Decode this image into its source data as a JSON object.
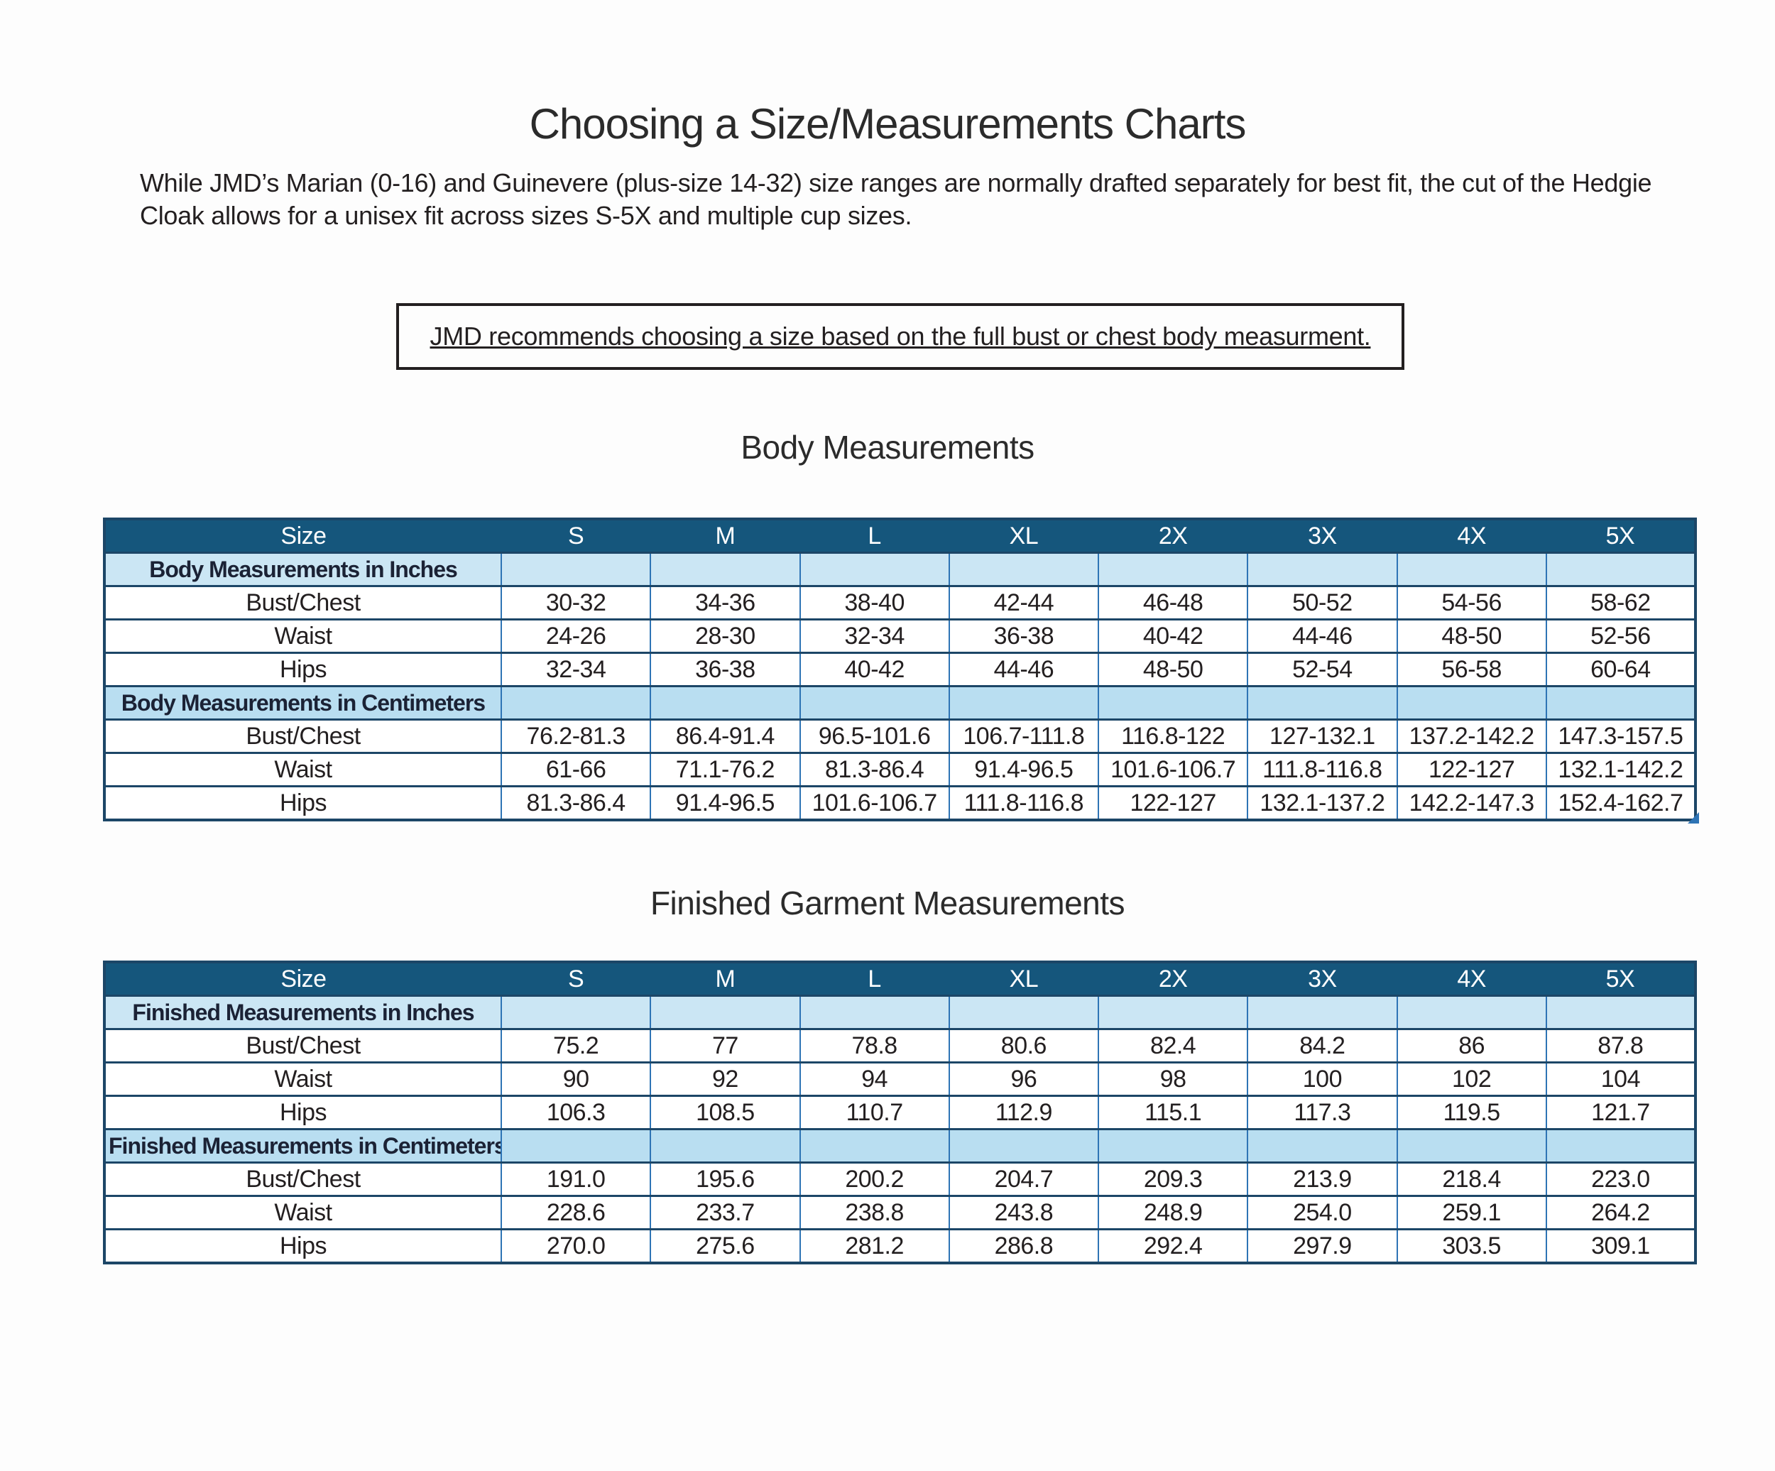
{
  "page": {
    "title": "Choosing a Size/Measurements Charts",
    "intro": "While JMD’s Marian (0-16) and Guinevere (plus-size 14-32) size ranges are normally drafted separately for best fit, the cut of the Hedgie Cloak allows for a unisex fit across sizes S-5X and multiple cup sizes.",
    "recommendation": "JMD recommends choosing a size based on the full bust or chest body measurment."
  },
  "colors": {
    "header_bg": "#15567C",
    "header_text": "#FFFFFF",
    "subheader_bg_inches": "#CBE6F4",
    "subheader_bg_cm": "#B9DEF1",
    "border_dark": "#1C4667",
    "border_blue": "#2E74B5",
    "text": "#231F20"
  },
  "tables": [
    {
      "heading": "Body Measurements",
      "columns": [
        "Size",
        "S",
        "M",
        "L",
        "XL",
        "2X",
        "3X",
        "4X",
        "5X"
      ],
      "sections": [
        {
          "label": "Body Measurements in Inches",
          "unit": "inches",
          "rows": [
            {
              "label": "Bust/Chest",
              "values": [
                "30-32",
                "34-36",
                "38-40",
                "42-44",
                "46-48",
                "50-52",
                "54-56",
                "58-62"
              ]
            },
            {
              "label": "Waist",
              "values": [
                "24-26",
                "28-30",
                "32-34",
                "36-38",
                "40-42",
                "44-46",
                "48-50",
                "52-56"
              ]
            },
            {
              "label": "Hips",
              "values": [
                "32-34",
                "36-38",
                "40-42",
                "44-46",
                "48-50",
                "52-54",
                "56-58",
                "60-64"
              ]
            }
          ]
        },
        {
          "label": "Body Measurements in Centimeters",
          "unit": "cm",
          "rows": [
            {
              "label": "Bust/Chest",
              "values": [
                "76.2-81.3",
                "86.4-91.4",
                "96.5-101.6",
                "106.7-111.8",
                "116.8-122",
                "127-132.1",
                "137.2-142.2",
                "147.3-157.5"
              ]
            },
            {
              "label": "Waist",
              "values": [
                "61-66",
                "71.1-76.2",
                "81.3-86.4",
                "91.4-96.5",
                "101.6-106.7",
                "111.8-116.8",
                "122-127",
                "132.1-142.2"
              ]
            },
            {
              "label": "Hips",
              "values": [
                "81.3-86.4",
                "91.4-96.5",
                "101.6-106.7",
                "111.8-116.8",
                "122-127",
                "132.1-137.2",
                "142.2-147.3",
                "152.4-162.7"
              ]
            }
          ]
        }
      ]
    },
    {
      "heading": "Finished Garment Measurements",
      "columns": [
        "Size",
        "S",
        "M",
        "L",
        "XL",
        "2X",
        "3X",
        "4X",
        "5X"
      ],
      "sections": [
        {
          "label": "Finished Measurements in Inches",
          "unit": "inches",
          "rows": [
            {
              "label": "Bust/Chest",
              "values": [
                "75.2",
                "77",
                "78.8",
                "80.6",
                "82.4",
                "84.2",
                "86",
                "87.8"
              ]
            },
            {
              "label": "Waist",
              "values": [
                "90",
                "92",
                "94",
                "96",
                "98",
                "100",
                "102",
                "104"
              ]
            },
            {
              "label": "Hips",
              "values": [
                "106.3",
                "108.5",
                "110.7",
                "112.9",
                "115.1",
                "117.3",
                "119.5",
                "121.7"
              ]
            }
          ]
        },
        {
          "label": "Finished Measurements in Centimeters",
          "unit": "cm",
          "rows": [
            {
              "label": "Bust/Chest",
              "values": [
                "191.0",
                "195.6",
                "200.2",
                "204.7",
                "209.3",
                "213.9",
                "218.4",
                "223.0"
              ]
            },
            {
              "label": "Waist",
              "values": [
                "228.6",
                "233.7",
                "238.8",
                "243.8",
                "248.9",
                "254.0",
                "259.1",
                "264.2"
              ]
            },
            {
              "label": "Hips",
              "values": [
                "270.0",
                "275.6",
                "281.2",
                "286.8",
                "292.4",
                "297.9",
                "303.5",
                "309.1"
              ]
            }
          ]
        }
      ]
    }
  ]
}
